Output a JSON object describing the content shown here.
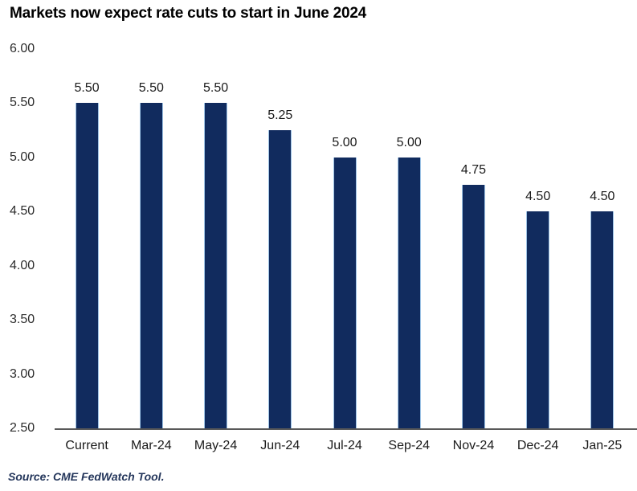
{
  "title": "Markets now expect rate cuts to start in June 2024",
  "source": "Source: CME FedWatch Tool.",
  "colors": {
    "bar_fill": "#112b5e",
    "bar_edge": "#9dc3e6",
    "axis_line": "#595959",
    "title_text": "#000000",
    "tick_text": "#2b2b2b",
    "value_label_text": "#1a1a1a",
    "source_text": "#24365b",
    "background": "#ffffff"
  },
  "chart_data": {
    "type": "bar",
    "title": "Markets now expect rate cuts to start in June 2024",
    "categories": [
      "Current",
      "Mar-24",
      "May-24",
      "Jun-24",
      "Jul-24",
      "Sep-24",
      "Nov-24",
      "Dec-24",
      "Jan-25"
    ],
    "values": [
      5.5,
      5.5,
      5.5,
      5.25,
      5.0,
      5.0,
      4.75,
      4.5,
      4.5
    ],
    "data_labels": [
      "5.50",
      "5.50",
      "5.50",
      "5.25",
      "5.00",
      "5.00",
      "4.75",
      "4.50",
      "4.50"
    ],
    "y_tick_labels": [
      "6.00",
      "5.50",
      "5.00",
      "4.50",
      "4.00",
      "3.50",
      "3.00",
      "2.50"
    ],
    "y_tick_values": [
      6.0,
      5.5,
      5.0,
      4.5,
      4.0,
      3.5,
      3.0,
      2.5
    ],
    "ylim": [
      2.5,
      6.0
    ],
    "xlabel": "",
    "ylabel": "",
    "grid": false,
    "legend_position": "none",
    "annotation_source": "Source: CME FedWatch Tool."
  }
}
